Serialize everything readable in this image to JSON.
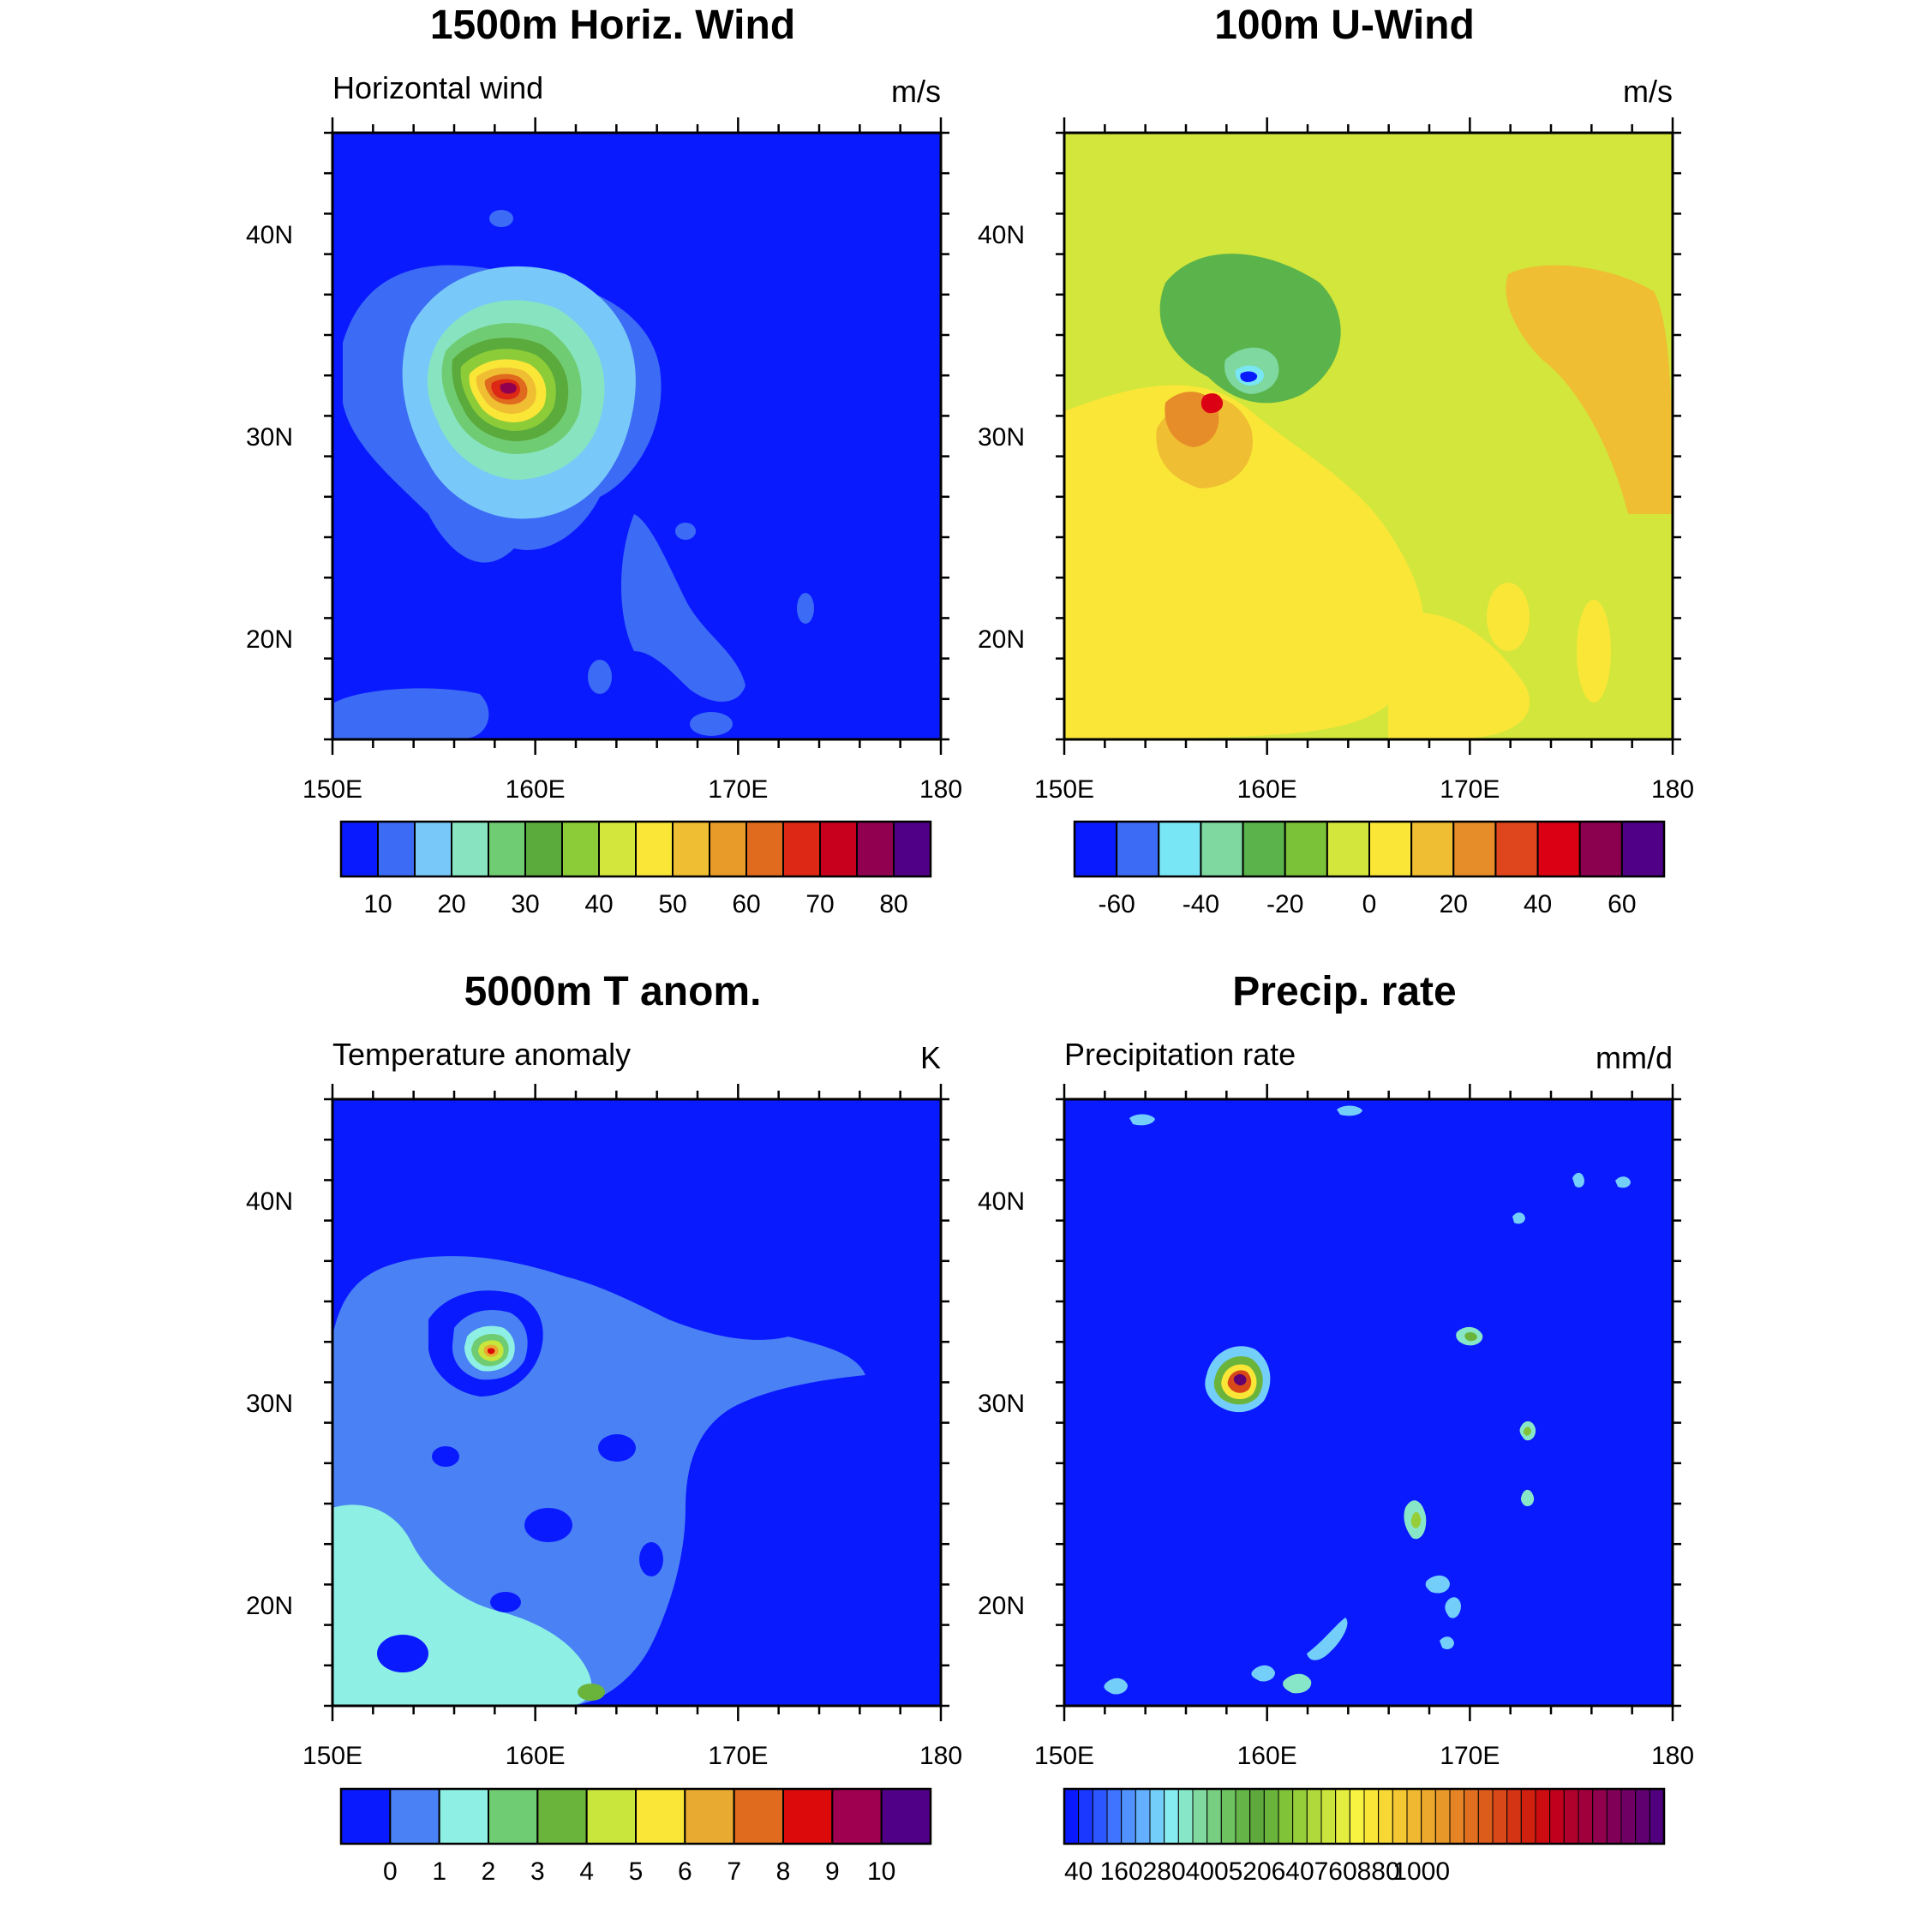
{
  "figure": {
    "background": "#ffffff"
  },
  "chart_data": [
    {
      "type": "heatmap",
      "title": "1500m Horiz. Wind",
      "left_label": "Horizontal wind",
      "units": "m/s",
      "x_ticks": [
        "150E",
        "160E",
        "170E",
        "180"
      ],
      "y_ticks": [
        "20N",
        "30N",
        "40N"
      ],
      "xlim": [
        150,
        180
      ],
      "ylim": [
        15,
        45
      ],
      "colorbar": {
        "colors": [
          "#0a1aff",
          "#3c6bf5",
          "#78c8fa",
          "#88e4c0",
          "#70cc72",
          "#5aaa3c",
          "#8ccc38",
          "#d2e63c",
          "#fae637",
          "#f0be32",
          "#e89b28",
          "#e06a1e",
          "#dc2814",
          "#c8001e",
          "#910050",
          "#500087"
        ],
        "labels": [
          "10",
          "20",
          "30",
          "40",
          "50",
          "60",
          "70",
          "80"
        ],
        "label_boundaries": [
          1,
          3,
          5,
          7,
          9,
          11,
          13,
          15
        ]
      },
      "background_color": "#0a1aff",
      "feature": {
        "type": "storm",
        "center": [
          158.2,
          32.5
        ],
        "note": "wind maximum"
      }
    },
    {
      "type": "heatmap",
      "title": "100m U-Wind",
      "left_label": "",
      "units": "m/s",
      "x_ticks": [
        "150E",
        "160E",
        "170E",
        "180"
      ],
      "y_ticks": [
        "20N",
        "30N",
        "40N"
      ],
      "xlim": [
        150,
        180
      ],
      "ylim": [
        15,
        45
      ],
      "colorbar": {
        "colors": [
          "#0a1aff",
          "#3c6bf5",
          "#78e6f5",
          "#7ed8a0",
          "#5ab44b",
          "#7cc238",
          "#d2e63c",
          "#fae637",
          "#f0be32",
          "#e68c28",
          "#e0461e",
          "#dc0014",
          "#8c0050",
          "#500087"
        ],
        "labels": [
          "-60",
          "-40",
          "-20",
          "0",
          "20",
          "40",
          "60"
        ],
        "label_boundaries": [
          1,
          3,
          5,
          7,
          9,
          11,
          13
        ]
      },
      "background_color": "#d2e63c",
      "feature": {
        "type": "dipole",
        "center": [
          158.5,
          32.2
        ]
      }
    },
    {
      "type": "heatmap",
      "title": "5000m T anom.",
      "left_label": "Temperature anomaly",
      "units": "K",
      "x_ticks": [
        "150E",
        "160E",
        "170E",
        "180"
      ],
      "y_ticks": [
        "20N",
        "30N",
        "40N"
      ],
      "xlim": [
        150,
        180
      ],
      "ylim": [
        15,
        45
      ],
      "colorbar": {
        "colors": [
          "#0a1aff",
          "#4a82f5",
          "#8ef0e4",
          "#70cc72",
          "#6ab43c",
          "#c8e63c",
          "#fae637",
          "#e8aa30",
          "#e06a1e",
          "#dc0a0a",
          "#a00050",
          "#500087"
        ],
        "labels": [
          "0",
          "1",
          "2",
          "3",
          "4",
          "5",
          "6",
          "7",
          "8",
          "9",
          "10"
        ],
        "label_boundaries": [
          1,
          2,
          3,
          4,
          5,
          6,
          7,
          8,
          9,
          10,
          11
        ]
      },
      "background_color": "#0a1aff",
      "feature": {
        "type": "warm-core",
        "center": [
          158.0,
          32.2
        ]
      }
    },
    {
      "type": "heatmap",
      "title": "Precip. rate",
      "left_label": "Precipitation rate",
      "units": "mm/d",
      "x_ticks": [
        "150E",
        "160E",
        "170E",
        "180"
      ],
      "y_ticks": [
        "20N",
        "30N",
        "40N"
      ],
      "xlim": [
        150,
        180
      ],
      "ylim": [
        15,
        45
      ],
      "colorbar": {
        "colors": [
          "#0a1aff",
          "#1a38ff",
          "#2c56ff",
          "#3e74ff",
          "#5092ff",
          "#62b0ff",
          "#74cefa",
          "#86ecf0",
          "#88e6c8",
          "#80daa0",
          "#78ce80",
          "#6ec260",
          "#64b448",
          "#5ea83c",
          "#6ab43c",
          "#80c238",
          "#96ce3a",
          "#b0da3c",
          "#cae43e",
          "#e4ee40",
          "#f8f240",
          "#fae637",
          "#f8d835",
          "#f4c832",
          "#f0b830",
          "#eca82c",
          "#e89828",
          "#e48424",
          "#e07020",
          "#dc5c1c",
          "#d84818",
          "#d43414",
          "#d02010",
          "#cc0c10",
          "#c0001c",
          "#b0002c",
          "#a0003c",
          "#90004c",
          "#800058",
          "#700064",
          "#600070",
          "#50007c"
        ],
        "labels": [
          "40",
          "160",
          "280",
          "400",
          "520",
          "640",
          "760",
          "880",
          "1000"
        ],
        "label_boundaries": [
          1,
          4,
          7,
          10,
          13,
          16,
          19,
          22,
          25
        ]
      },
      "background_color": "#0a1aff",
      "feature": {
        "type": "rainband",
        "center": [
          158.6,
          31.8
        ]
      }
    }
  ]
}
